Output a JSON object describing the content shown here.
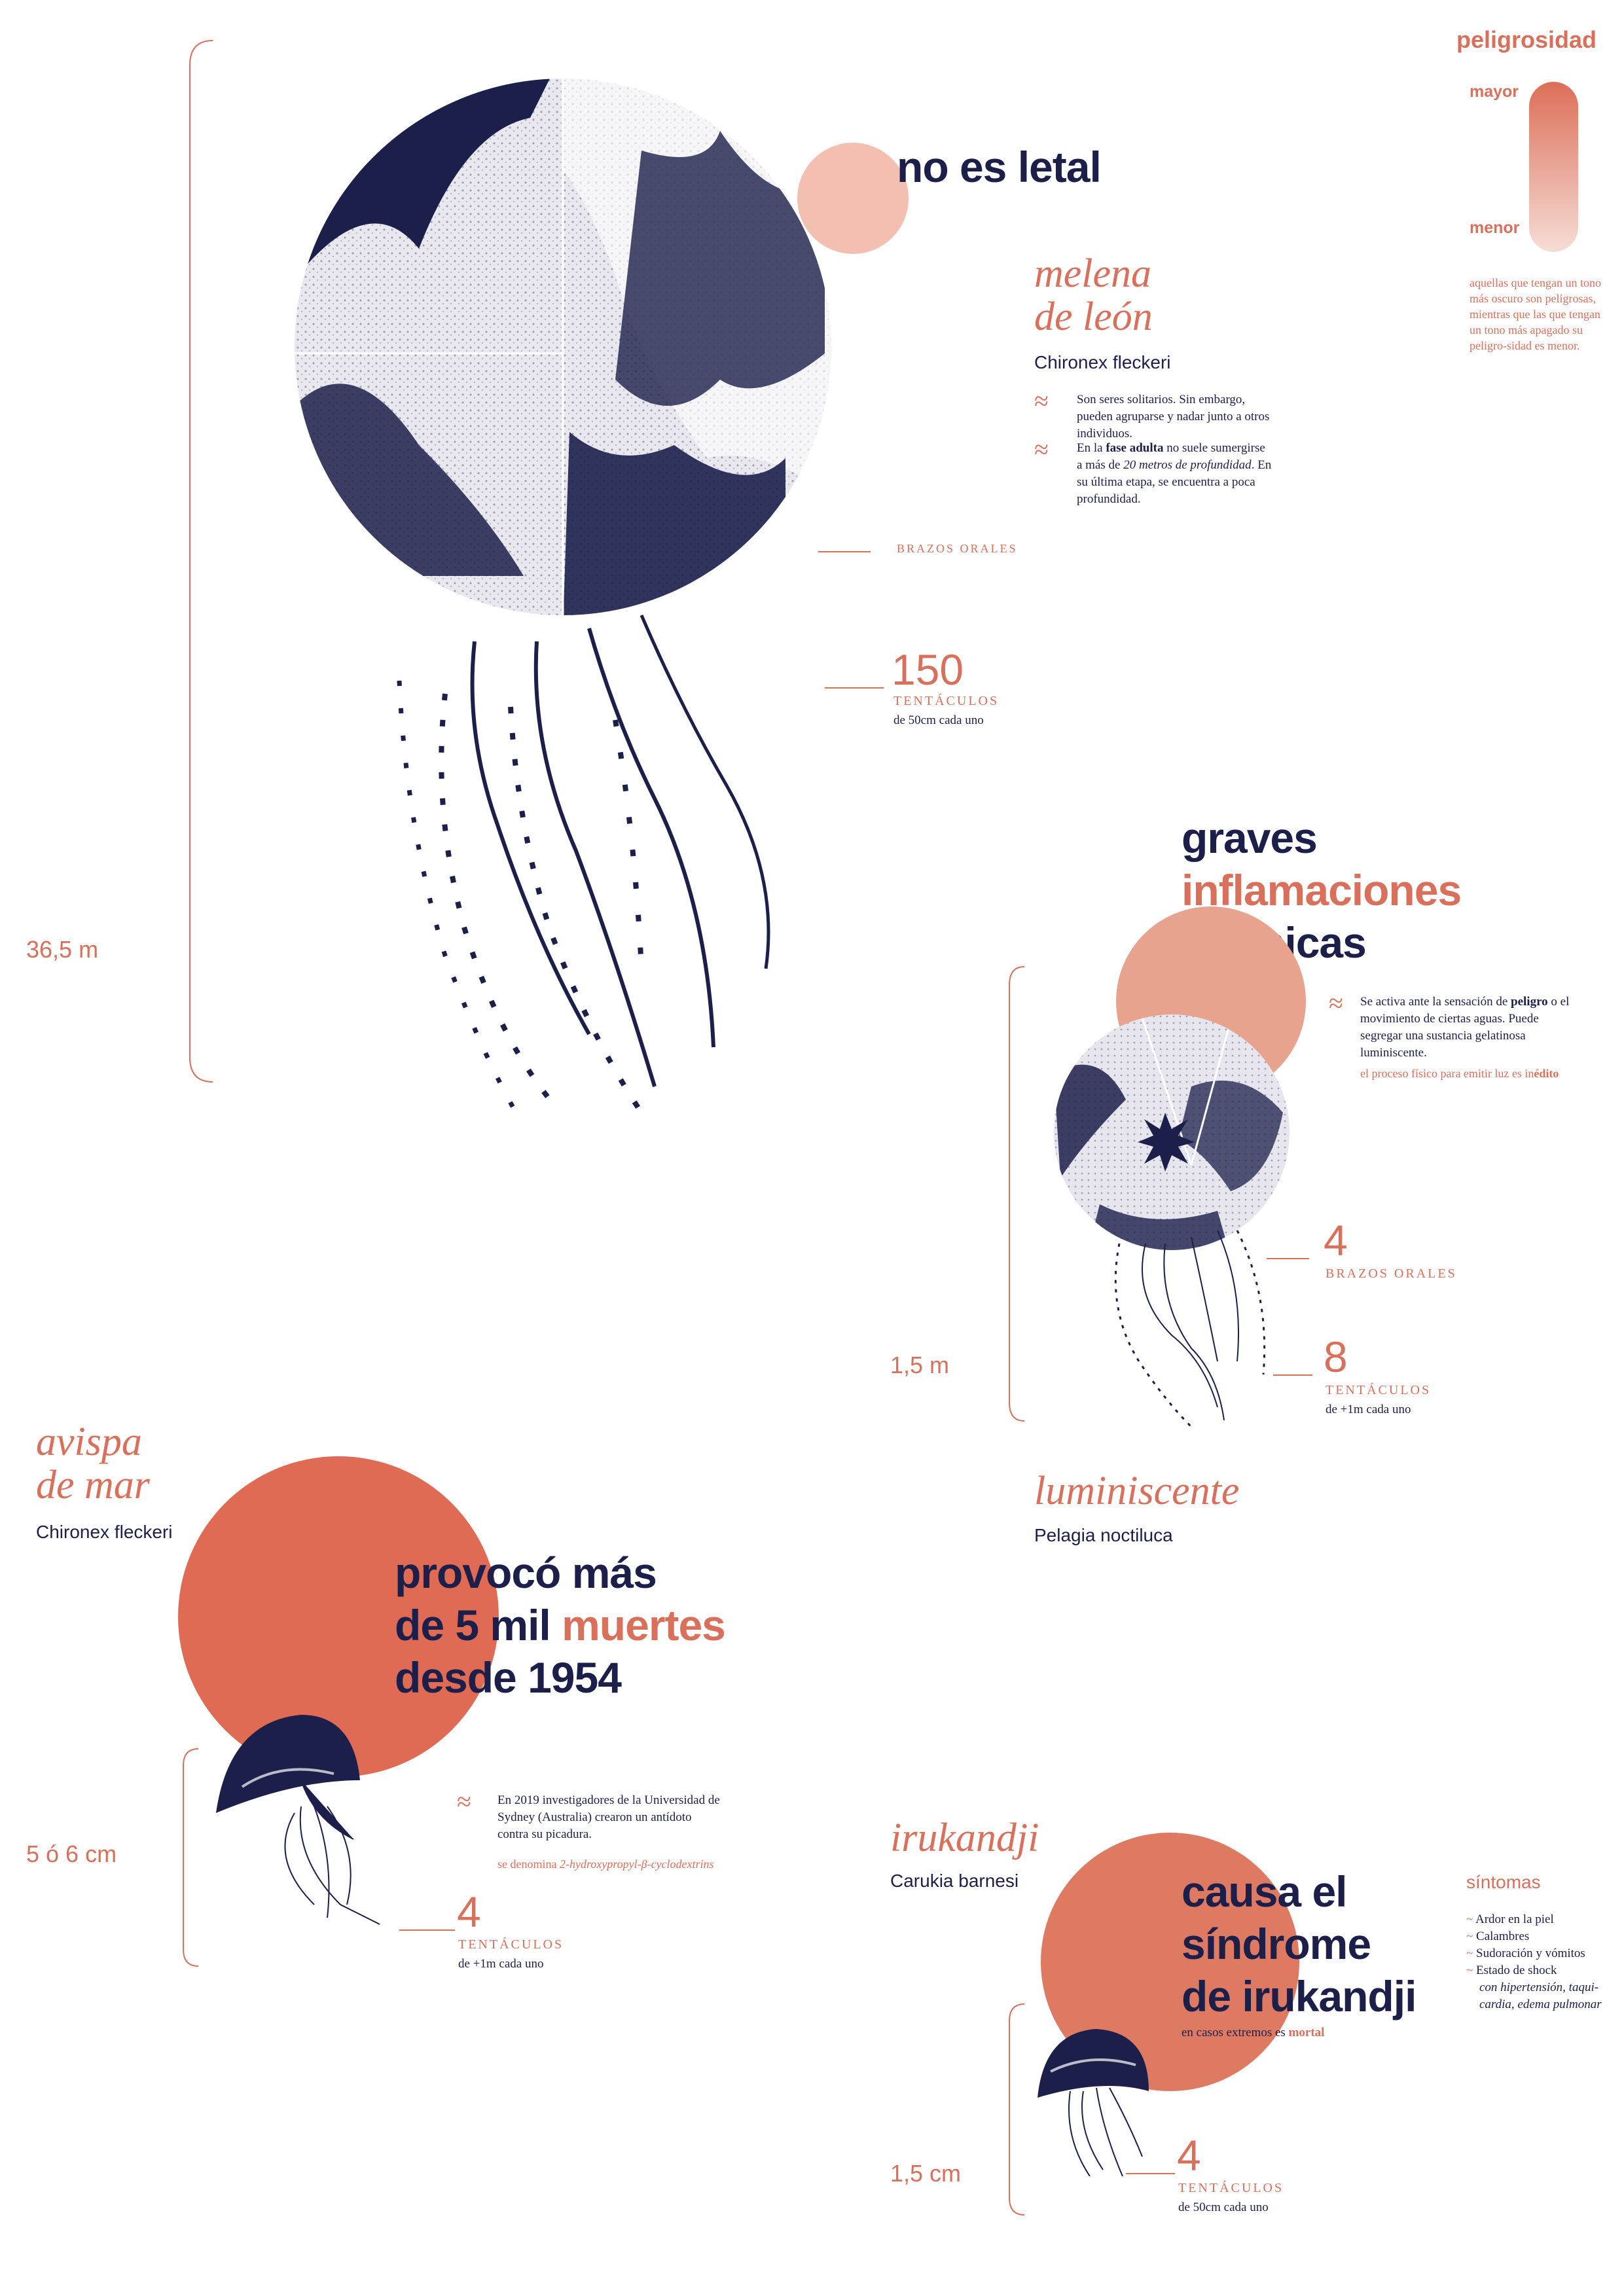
{
  "legend": {
    "title": "peligrosidad",
    "high": "mayor",
    "low": "menor",
    "text": "aquellas que tengan un tono más oscuro son peligrosas, mientras que las que tengan un tono más apagado su peligro-sidad es menor."
  },
  "colors": {
    "navy": "#1c1f4a",
    "salmon": "#d9705b",
    "light_salmon": "#f3bfb0",
    "mid_salmon": "#e8a38f",
    "orange": "#df6b55"
  },
  "melena": {
    "headline": "no es letal",
    "name_line1": "melena",
    "name_line2": "de león",
    "scientific": "Chironex fleckeri",
    "fact1": "Son seres solitarios. Sin embargo, pueden agruparse y nadar junto a otros individuos.",
    "fact2_pre": "En la ",
    "fact2_bold": "fase adulta",
    "fact2_mid": " no suele sumergirse a más de ",
    "fact2_italic": "20 metros de profundidad",
    "fact2_post": ". En su última etapa, se encuentra a poca profundidad.",
    "arms_label": "BRAZOS ORALES",
    "tentacles_number": "150",
    "tentacles_label": "TENTÁCULOS",
    "tentacles_detail": "de 50cm cada uno",
    "size": "36,5 m"
  },
  "luminiscente": {
    "headline_1": "graves",
    "headline_2": "inflamaciones",
    "headline_3": "dérmicas",
    "fact_pre": "Se activa ante la sensación de ",
    "fact_bold": "peligro",
    "fact_post": " o el movimiento de ciertas aguas. Puede segregar una sustancia gelatinosa luminiscente.",
    "note_pre": "el proceso físico para emitir luz es in",
    "note_bold": "édito",
    "arms_number": "4",
    "arms_label": "BRAZOS ORALES",
    "tentacles_number": "8",
    "tentacles_label": "TENTÁCULOS",
    "tentacles_detail": "de +1m cada uno",
    "size": "1,5 m",
    "name": "luminiscente",
    "scientific": "Pelagia noctiluca"
  },
  "avispa": {
    "name_line1": "avispa",
    "name_line2": "de mar",
    "scientific": "Chironex fleckeri",
    "headline_1": "provocó más",
    "headline_2a": "de 5 mil ",
    "headline_2b": "muertes",
    "headline_3": "desde 1954",
    "fact": "En 2019 investigadores de la Universidad de Sydney (Australia) crearon un antídoto contra su picadura.",
    "note_pre": "se denomina ",
    "note_italic": "2-hydroxypropyl-β-cyclodextrins",
    "tentacles_number": "4",
    "tentacles_label": "TENTÁCULOS",
    "tentacles_detail": "de +1m cada uno",
    "size": "5 ó 6 cm"
  },
  "irukandji": {
    "name": "irukandji",
    "scientific": "Carukia barnesi",
    "headline_1": "causa el",
    "headline_2": "síndrome",
    "headline_3": "de irukandji",
    "note_pre": "en casos extremos es ",
    "note_bold": "mortal",
    "symptoms_title": "síntomas",
    "symptoms": [
      "Ardor en la piel",
      "Calambres",
      "Sudoración y vómitos",
      "Estado de shock"
    ],
    "symptoms_detail": "con hipertensión, taqui-cardia, edema pulmonar",
    "tentacles_number": "4",
    "tentacles_label": "TENTÁCULOS",
    "tentacles_detail": "de 50cm cada uno",
    "size": "1,5 cm"
  }
}
